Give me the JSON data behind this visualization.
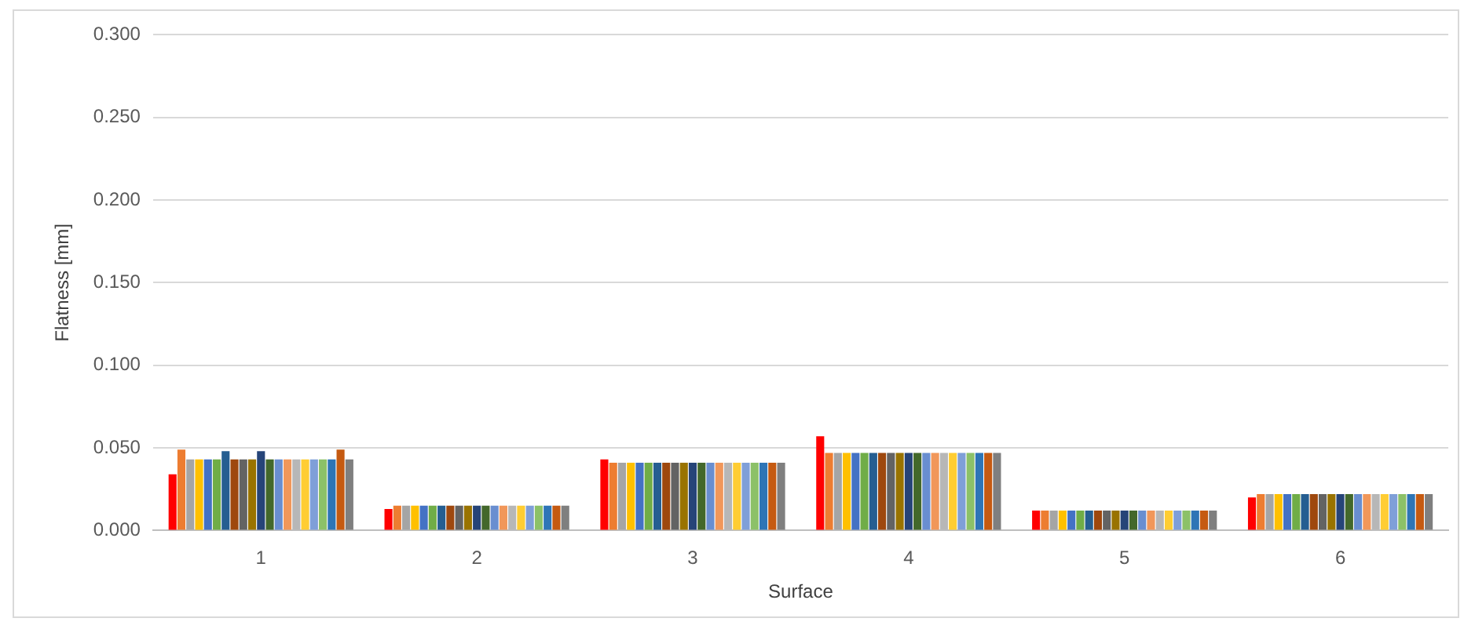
{
  "chart_data": {
    "type": "bar",
    "xlabel": "Surface",
    "ylabel": "Flatness [mm]",
    "categories": [
      "1",
      "2",
      "3",
      "4",
      "5",
      "6"
    ],
    "ylim": [
      0,
      0.3
    ],
    "yticks": [
      {
        "value": 0,
        "label": "0.000"
      },
      {
        "value": 0.05,
        "label": "0.050"
      },
      {
        "value": 0.1,
        "label": "0.100"
      },
      {
        "value": 0.15,
        "label": "0.150"
      },
      {
        "value": 0.2,
        "label": "0.200"
      },
      {
        "value": 0.25,
        "label": "0.250"
      },
      {
        "value": 0.3,
        "label": "0.300"
      }
    ],
    "grid": "y",
    "legend": false,
    "series": [
      {
        "color": "#ff0000",
        "values": [
          0.034,
          0.013,
          0.043,
          0.057,
          0.012,
          0.02
        ]
      },
      {
        "color": "#ed7d31",
        "values": [
          0.049,
          0.015,
          0.041,
          0.047,
          0.012,
          0.022
        ]
      },
      {
        "color": "#a5a5a5",
        "values": [
          0.043,
          0.015,
          0.041,
          0.047,
          0.012,
          0.022
        ]
      },
      {
        "color": "#ffc000",
        "values": [
          0.043,
          0.015,
          0.041,
          0.047,
          0.012,
          0.022
        ]
      },
      {
        "color": "#4472c4",
        "values": [
          0.043,
          0.015,
          0.041,
          0.047,
          0.012,
          0.022
        ]
      },
      {
        "color": "#70ad47",
        "values": [
          0.043,
          0.015,
          0.041,
          0.047,
          0.012,
          0.022
        ]
      },
      {
        "color": "#255e91",
        "values": [
          0.048,
          0.015,
          0.041,
          0.047,
          0.012,
          0.022
        ]
      },
      {
        "color": "#9e480e",
        "values": [
          0.043,
          0.015,
          0.041,
          0.047,
          0.012,
          0.022
        ]
      },
      {
        "color": "#636363",
        "values": [
          0.043,
          0.015,
          0.041,
          0.047,
          0.012,
          0.022
        ]
      },
      {
        "color": "#997300",
        "values": [
          0.043,
          0.015,
          0.041,
          0.047,
          0.012,
          0.022
        ]
      },
      {
        "color": "#264478",
        "values": [
          0.048,
          0.015,
          0.041,
          0.047,
          0.012,
          0.022
        ]
      },
      {
        "color": "#43682b",
        "values": [
          0.043,
          0.015,
          0.041,
          0.047,
          0.012,
          0.022
        ]
      },
      {
        "color": "#698ed0",
        "values": [
          0.043,
          0.015,
          0.041,
          0.047,
          0.012,
          0.022
        ]
      },
      {
        "color": "#f1975a",
        "values": [
          0.043,
          0.015,
          0.041,
          0.047,
          0.012,
          0.022
        ]
      },
      {
        "color": "#b7b7b7",
        "values": [
          0.043,
          0.015,
          0.041,
          0.047,
          0.012,
          0.022
        ]
      },
      {
        "color": "#ffcd33",
        "values": [
          0.043,
          0.015,
          0.041,
          0.047,
          0.012,
          0.022
        ]
      },
      {
        "color": "#7f9fd8",
        "values": [
          0.043,
          0.015,
          0.041,
          0.047,
          0.012,
          0.022
        ]
      },
      {
        "color": "#8cc168",
        "values": [
          0.043,
          0.015,
          0.041,
          0.047,
          0.012,
          0.022
        ]
      },
      {
        "color": "#2e75b6",
        "values": [
          0.043,
          0.015,
          0.041,
          0.047,
          0.012,
          0.022
        ]
      },
      {
        "color": "#c55a11",
        "values": [
          0.049,
          0.015,
          0.041,
          0.047,
          0.012,
          0.022
        ]
      },
      {
        "color": "#7f7f7f",
        "values": [
          0.043,
          0.015,
          0.041,
          0.047,
          0.012,
          0.022
        ]
      }
    ]
  }
}
